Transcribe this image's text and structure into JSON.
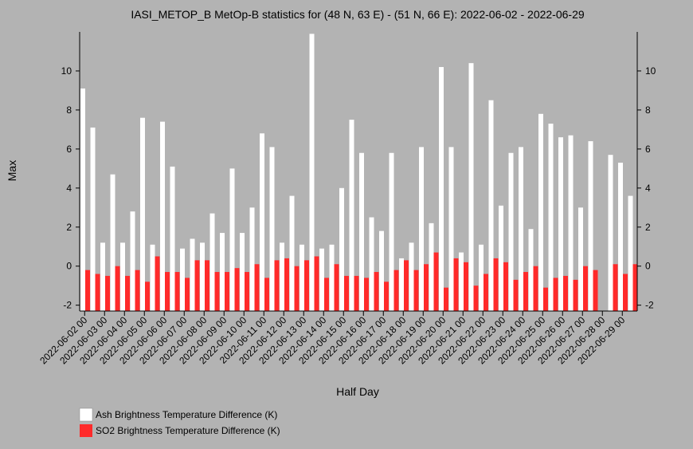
{
  "chart_data": {
    "type": "bar",
    "title": "IASI_METOP_B MetOp-B statistics for (48 N, 63 E) - (51 N, 66 E): 2022-06-02 - 2022-06-29",
    "xlabel": "Half Day",
    "ylabel": "Max",
    "ylim": [
      -2.3,
      12
    ],
    "yticks": [
      -2,
      0,
      2,
      4,
      6,
      8,
      10
    ],
    "grid": false,
    "legend_position": "bottom-left",
    "categories": [
      "2022-06-02 00",
      "2022-06-02 12",
      "2022-06-03 00",
      "2022-06-03 12",
      "2022-06-04 00",
      "2022-06-04 12",
      "2022-06-05 00",
      "2022-06-05 12",
      "2022-06-06 00",
      "2022-06-06 12",
      "2022-06-07 00",
      "2022-06-07 12",
      "2022-06-08 00",
      "2022-06-08 12",
      "2022-06-09 00",
      "2022-06-09 12",
      "2022-06-10 00",
      "2022-06-10 12",
      "2022-06-11 00",
      "2022-06-11 12",
      "2022-06-12 00",
      "2022-06-12 12",
      "2022-06-13 00",
      "2022-06-13 12",
      "2022-06-14 00",
      "2022-06-14 12",
      "2022-06-15 00",
      "2022-06-15 12",
      "2022-06-16 00",
      "2022-06-16 12",
      "2022-06-17 00",
      "2022-06-17 12",
      "2022-06-18 00",
      "2022-06-18 12",
      "2022-06-19 00",
      "2022-06-19 12",
      "2022-06-20 00",
      "2022-06-20 12",
      "2022-06-21 00",
      "2022-06-21 12",
      "2022-06-22 00",
      "2022-06-22 12",
      "2022-06-23 00",
      "2022-06-23 12",
      "2022-06-24 00",
      "2022-06-24 12",
      "2022-06-25 00",
      "2022-06-25 12",
      "2022-06-26 00",
      "2022-06-26 12",
      "2022-06-27 00",
      "2022-06-27 12",
      "2022-06-28 00",
      "2022-06-28 12",
      "2022-06-29 00",
      "2022-06-29 12"
    ],
    "x_tick_labels": [
      "2022-06-02 00",
      "2022-06-03 00",
      "2022-06-04 00",
      "2022-06-05 00",
      "2022-06-06 00",
      "2022-06-07 00",
      "2022-06-08 00",
      "2022-06-09 00",
      "2022-06-10 00",
      "2022-06-11 00",
      "2022-06-12 00",
      "2022-06-13 00",
      "2022-06-14 00",
      "2022-06-15 00",
      "2022-06-16 00",
      "2022-06-17 00",
      "2022-06-18 00",
      "2022-06-19 00",
      "2022-06-20 00",
      "2022-06-21 00",
      "2022-06-22 00",
      "2022-06-23 00",
      "2022-06-24 00",
      "2022-06-25 00",
      "2022-06-26 00",
      "2022-06-27 00",
      "2022-06-28 00",
      "2022-06-29 00"
    ],
    "series": [
      {
        "name": "Ash Brightness Temperature Difference (K)",
        "color": "#ffffff",
        "values": [
          9.1,
          7.1,
          1.2,
          4.7,
          1.2,
          2.8,
          7.6,
          1.1,
          7.4,
          5.1,
          0.9,
          1.4,
          1.2,
          2.7,
          1.7,
          5.0,
          1.7,
          3.0,
          6.8,
          6.1,
          1.2,
          3.6,
          1.1,
          11.9,
          0.9,
          1.1,
          4.0,
          7.5,
          5.8,
          2.5,
          1.8,
          5.8,
          0.4,
          1.2,
          6.1,
          2.2,
          10.2,
          6.1,
          0.7,
          10.4,
          1.1,
          8.5,
          3.1,
          5.8,
          6.1,
          1.9,
          7.8,
          7.3,
          6.6,
          6.7,
          3.0,
          6.4,
          null,
          5.7,
          5.3,
          3.6
        ]
      },
      {
        "name": "SO2 Brightness Temperature Difference (K)",
        "color": "#ff2a2a",
        "values": [
          -0.2,
          -0.4,
          -0.5,
          0.0,
          -0.5,
          -0.2,
          -0.8,
          0.5,
          -0.3,
          -0.3,
          -0.6,
          0.3,
          0.3,
          -0.3,
          -0.3,
          -0.1,
          -0.3,
          0.1,
          -0.6,
          0.3,
          0.4,
          0.0,
          0.3,
          0.5,
          -0.6,
          0.1,
          -0.5,
          -0.5,
          -0.6,
          -0.3,
          -0.8,
          -0.2,
          0.3,
          -0.2,
          0.1,
          0.7,
          -1.1,
          0.4,
          0.2,
          -1.0,
          -0.4,
          0.4,
          0.2,
          -0.7,
          -0.3,
          0.0,
          -1.1,
          -0.6,
          -0.5,
          -0.7,
          0.0,
          -0.2,
          null,
          0.1,
          -0.4,
          0.1
        ]
      }
    ]
  }
}
